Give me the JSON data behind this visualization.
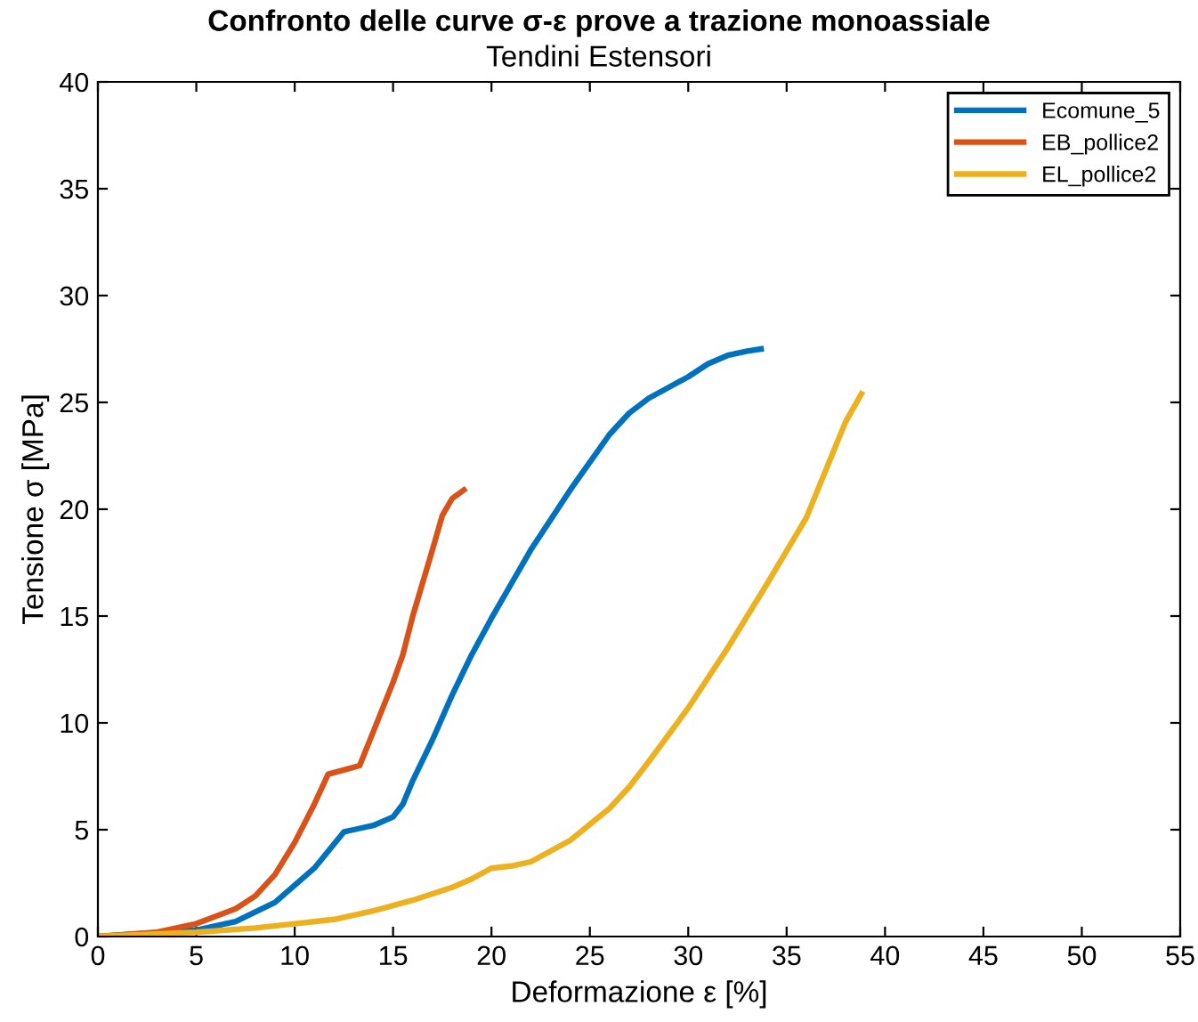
{
  "chart_data": {
    "type": "line",
    "title": "Confronto delle curve σ-ε prove a trazione monoassiale",
    "subtitle": "Tendini Estensori",
    "xlabel": "Deformazione ε [%]",
    "ylabel": "Tensione σ [MPa]",
    "xlim": [
      0,
      55
    ],
    "xticks": [
      0,
      5,
      10,
      15,
      20,
      25,
      30,
      35,
      40,
      45,
      50,
      55
    ],
    "ylim": [
      0,
      40
    ],
    "yticks": [
      0,
      5,
      10,
      15,
      20,
      25,
      30,
      35,
      40
    ],
    "grid": false,
    "legend": "top right",
    "marker": "none",
    "line_style": "solid",
    "series": [
      {
        "name": "Ecomune_5",
        "color": "#0072bd",
        "x": [
          0,
          5,
          7,
          9,
          11,
          12.5,
          13,
          14,
          15,
          15.5,
          16,
          17,
          18,
          19,
          20,
          21,
          22,
          23,
          24,
          25,
          26,
          27,
          28,
          29,
          30,
          31,
          32,
          33,
          33.7
        ],
        "values": [
          0,
          0.3,
          0.7,
          1.6,
          3.2,
          4.9,
          5.0,
          5.2,
          5.6,
          6.2,
          7.3,
          9.2,
          11.3,
          13.2,
          14.9,
          16.5,
          18.1,
          19.5,
          20.9,
          22.2,
          23.5,
          24.5,
          25.2,
          25.7,
          26.2,
          26.8,
          27.2,
          27.4,
          27.5
        ]
      },
      {
        "name": "EB_pollice2",
        "color": "#d95319",
        "x": [
          0,
          3,
          5,
          7,
          8,
          9,
          10,
          11,
          11.7,
          12.5,
          13.3,
          14,
          15,
          15.5,
          16,
          17,
          17.5,
          18,
          18.6
        ],
        "values": [
          0,
          0.2,
          0.6,
          1.3,
          1.9,
          2.9,
          4.4,
          6.2,
          7.6,
          7.8,
          8.0,
          9.6,
          11.9,
          13.2,
          15.0,
          18.1,
          19.7,
          20.5,
          20.9
        ]
      },
      {
        "name": "EL_pollice2",
        "color": "#edb120",
        "x": [
          0,
          5,
          8,
          10,
          12,
          14,
          16,
          18,
          19,
          20,
          21,
          22,
          24,
          26,
          27,
          28,
          30,
          32,
          34,
          36,
          38,
          38.8
        ],
        "values": [
          0,
          0.2,
          0.4,
          0.6,
          0.8,
          1.2,
          1.7,
          2.3,
          2.7,
          3.2,
          3.3,
          3.5,
          4.5,
          6.0,
          7.0,
          8.2,
          10.7,
          13.5,
          16.5,
          19.6,
          24.1,
          25.4
        ]
      }
    ]
  }
}
